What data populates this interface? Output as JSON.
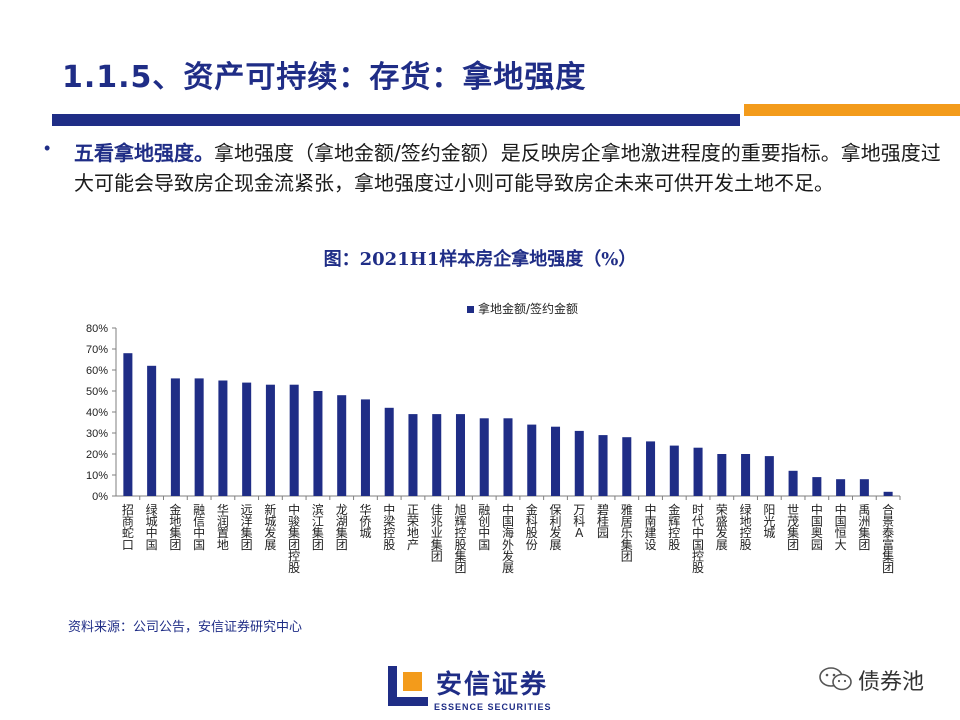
{
  "slide": {
    "title": "1.1.5、资产可持续：存货：拿地强度",
    "bullet_lead": "五看拿地强度。",
    "bullet_body": "拿地强度（拿地金额/签约金额）是反映房企拿地激进程度的重要指标。拿地强度过大可能会导致房企现金流紧张，拿地强度过小则可能导致房企未来可供开发土地不足。",
    "source": "资料来源：公司公告，安信证券研究中心"
  },
  "logo": {
    "cn": "安信证券",
    "en": "ESSENCE SECURITIES"
  },
  "watermark": {
    "text": "债券池"
  },
  "colors": {
    "primary": "#1f2d86",
    "accent": "#f39b1b",
    "bar": "#1f2d86"
  },
  "chart_data": {
    "type": "bar",
    "title": "图：2021H1样本房企拿地强度（%）",
    "xlabel": "",
    "ylabel": "",
    "legend": "拿地金额/签约金额",
    "legend_position": "top",
    "ylim": [
      0,
      80
    ],
    "yticks": [
      0,
      10,
      20,
      30,
      40,
      50,
      60,
      70,
      80
    ],
    "tick_suffix": "%",
    "categories": [
      "招商蛇口",
      "绿城中国",
      "金地集团",
      "融信中国",
      "华润置地",
      "远洋集团",
      "新城发展",
      "中骏集团控股",
      "滨江集团",
      "龙湖集团",
      "华侨城",
      "中梁控股",
      "正荣地产",
      "佳兆业集团",
      "旭辉控股集团",
      "融创中国",
      "中国海外发展",
      "金科股份",
      "保利发展",
      "万科A",
      "碧桂园",
      "雅居乐集团",
      "中南建设",
      "金辉控股",
      "时代中国控股",
      "荣盛发展",
      "绿地控股",
      "阳光城",
      "世茂集团",
      "中国奥园",
      "中国恒大",
      "禹洲集团",
      "合景泰富集团"
    ],
    "series": [
      {
        "name": "拿地金额/签约金额",
        "values": [
          68,
          62,
          56,
          56,
          55,
          54,
          53,
          53,
          50,
          48,
          46,
          42,
          39,
          39,
          39,
          37,
          37,
          34,
          33,
          31,
          29,
          28,
          26,
          24,
          23,
          20,
          20,
          19,
          12,
          9,
          8,
          8,
          2
        ]
      }
    ]
  }
}
